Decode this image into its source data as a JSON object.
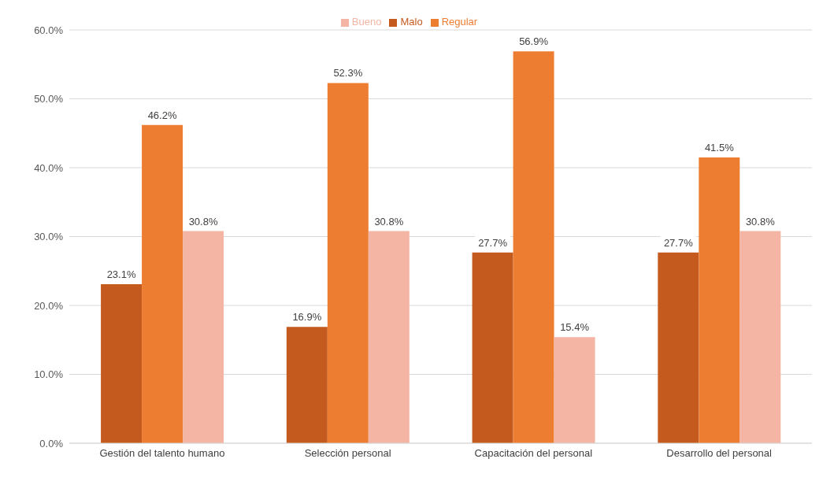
{
  "chart_data": {
    "type": "bar",
    "categories": [
      "Gestión del talento humano",
      "Selección personal",
      "Capacitación del personal",
      "Desarrollo del personal"
    ],
    "series": [
      {
        "name": "Malo",
        "color": "#c55a1e",
        "values": [
          23.1,
          16.9,
          27.7,
          27.7
        ],
        "value_labels": [
          "23.1%",
          "16.9%",
          "27.7%",
          "27.7%"
        ]
      },
      {
        "name": "Regular",
        "color": "#ed7d31",
        "values": [
          46.2,
          52.3,
          56.9,
          41.5
        ],
        "value_labels": [
          "46.2%",
          "52.3%",
          "56.9%",
          "41.5%"
        ]
      },
      {
        "name": "Bueno",
        "color": "#f4b5a4",
        "values": [
          30.8,
          30.8,
          15.4,
          30.8
        ],
        "value_labels": [
          "30.8%",
          "30.8%",
          "15.4%",
          "30.8%"
        ]
      }
    ],
    "ylim": [
      0,
      60
    ],
    "yticks": [
      {
        "value": 0,
        "label": "0.0%"
      },
      {
        "value": 10,
        "label": "10.0%"
      },
      {
        "value": 20,
        "label": "20.0%"
      },
      {
        "value": 30,
        "label": "30.0%"
      },
      {
        "value": 40,
        "label": "40.0%"
      },
      {
        "value": 50,
        "label": "50.0%"
      },
      {
        "value": 60,
        "label": "60.0%"
      }
    ],
    "grid": "y",
    "legend": "top"
  }
}
